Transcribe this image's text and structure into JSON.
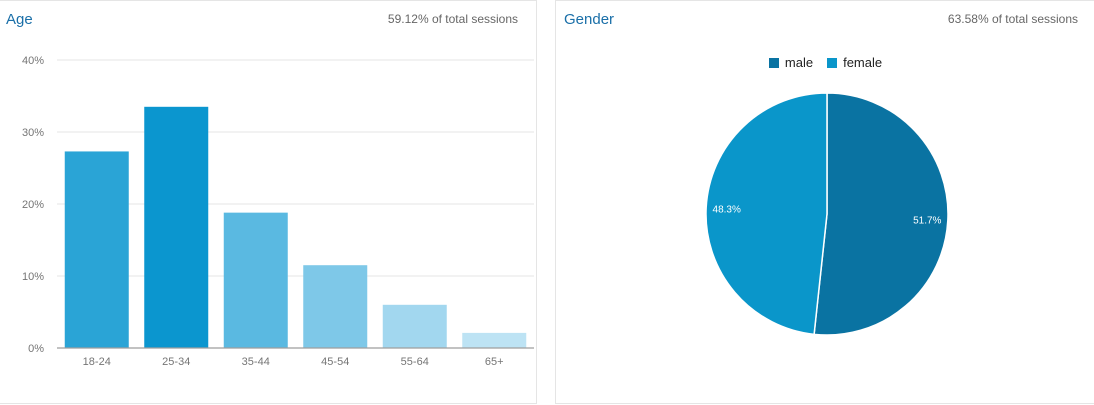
{
  "age_panel": {
    "title": "Age",
    "subtitle": "59.12% of total sessions"
  },
  "gender_panel": {
    "title": "Gender",
    "subtitle": "63.58% of total sessions"
  },
  "chart_data": [
    {
      "type": "bar",
      "title": "Age",
      "categories": [
        "18-24",
        "25-34",
        "35-44",
        "45-54",
        "55-64",
        "65+"
      ],
      "values": [
        27.3,
        33.5,
        18.8,
        11.5,
        6.0,
        2.1
      ],
      "colors": [
        "#2aa4d6",
        "#0b96cf",
        "#5ab9e1",
        "#7ec8e8",
        "#a2d7ef",
        "#bde3f4"
      ],
      "yticks": [
        "0%",
        "10%",
        "20%",
        "30%",
        "40%"
      ],
      "ylim": [
        0,
        40
      ],
      "grid": true
    },
    {
      "type": "pie",
      "title": "Gender",
      "slices": [
        {
          "label": "male",
          "value": 51.7,
          "text": "51.7%",
          "color": "#0a73a2"
        },
        {
          "label": "female",
          "value": 48.3,
          "text": "48.3%",
          "color": "#0a96ca"
        }
      ],
      "legend": "top-center"
    }
  ]
}
